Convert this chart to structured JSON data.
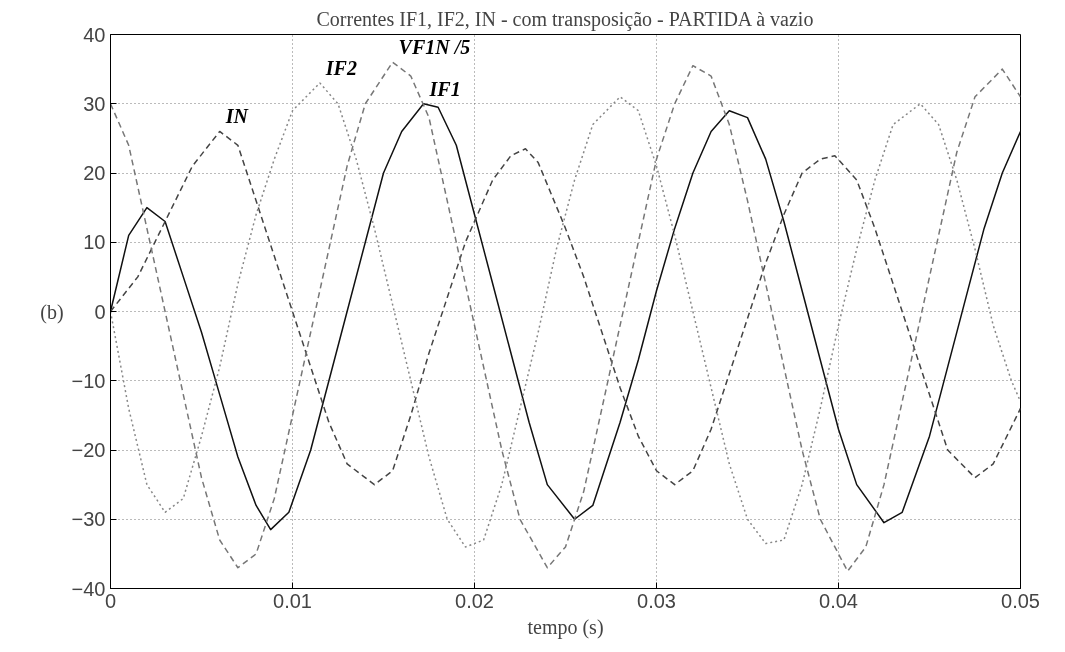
{
  "chart_data": {
    "type": "line",
    "title": "Correntes IF1, IF2, IN - com transposição - PARTIDA à vazio",
    "xlabel": "tempo (s)",
    "annotations": [
      "(b)"
    ],
    "xlim": [
      0,
      0.05
    ],
    "ylim": [
      -40,
      40
    ],
    "xticks": [
      0,
      0.01,
      0.02,
      0.03,
      0.04,
      0.05
    ],
    "yticks": [
      -40,
      -30,
      -20,
      -10,
      0,
      10,
      20,
      30,
      40
    ],
    "grid": true,
    "series": [
      {
        "name": "IF1",
        "color": "#111111",
        "line_style": "solid",
        "x": [
          0,
          0.001,
          0.002,
          0.003,
          0.004,
          0.005,
          0.006,
          0.007,
          0.008,
          0.0088,
          0.0098,
          0.011,
          0.012,
          0.013,
          0.014,
          0.015,
          0.016,
          0.0172,
          0.018,
          0.019,
          0.02,
          0.021,
          0.022,
          0.023,
          0.024,
          0.0255,
          0.0265,
          0.028,
          0.029,
          0.03,
          0.031,
          0.032,
          0.033,
          0.034,
          0.035,
          0.036,
          0.037,
          0.038,
          0.039,
          0.04,
          0.041,
          0.0425,
          0.0435,
          0.045,
          0.046,
          0.047,
          0.048,
          0.049,
          0.05
        ],
        "values": [
          0,
          11,
          15,
          13,
          5,
          -3,
          -12,
          -21,
          -28,
          -31.5,
          -29,
          -20,
          -10,
          0,
          10,
          20,
          26,
          30,
          29.5,
          24,
          14,
          4,
          -6,
          -16,
          -25,
          -30,
          -28,
          -16,
          -7,
          3,
          12,
          20,
          26,
          29,
          28,
          22,
          13,
          3,
          -7,
          -17,
          -25,
          -30.5,
          -29,
          -18,
          -8,
          2,
          12,
          20,
          26
        ]
      },
      {
        "name": "IN",
        "color": "#444444",
        "line_style": "dashed",
        "x": [
          0,
          0.0015,
          0.003,
          0.0045,
          0.006,
          0.007,
          0.008,
          0.009,
          0.01,
          0.011,
          0.012,
          0.013,
          0.0145,
          0.0155,
          0.0165,
          0.0175,
          0.0185,
          0.0195,
          0.021,
          0.022,
          0.0228,
          0.0235,
          0.025,
          0.026,
          0.027,
          0.028,
          0.029,
          0.03,
          0.031,
          0.032,
          0.033,
          0.034,
          0.035,
          0.036,
          0.037,
          0.038,
          0.039,
          0.0398,
          0.041,
          0.042,
          0.043,
          0.044,
          0.045,
          0.046,
          0.0475,
          0.0485,
          0.05
        ],
        "values": [
          0,
          5,
          13,
          21,
          26,
          24,
          16,
          8,
          0,
          -8,
          -16,
          -22,
          -25,
          -23,
          -15,
          -6,
          2,
          10,
          19,
          22.5,
          23.5,
          21.5,
          12,
          5,
          -3,
          -11,
          -18,
          -23,
          -25,
          -23,
          -17,
          -9,
          -1,
          7,
          14,
          20,
          22,
          22.5,
          19,
          12,
          4,
          -4,
          -12,
          -20,
          -24,
          -22,
          -14
        ]
      },
      {
        "name": "VF1N /5",
        "color": "#777777",
        "line_style": "dashed",
        "x": [
          0,
          0.001,
          0.002,
          0.003,
          0.004,
          0.005,
          0.006,
          0.007,
          0.008,
          0.009,
          0.01,
          0.011,
          0.012,
          0.013,
          0.014,
          0.0155,
          0.0165,
          0.0175,
          0.0185,
          0.0195,
          0.0205,
          0.0215,
          0.0225,
          0.024,
          0.025,
          0.026,
          0.027,
          0.028,
          0.029,
          0.03,
          0.031,
          0.032,
          0.033,
          0.034,
          0.035,
          0.036,
          0.037,
          0.038,
          0.039,
          0.0405,
          0.0415,
          0.0425,
          0.0435,
          0.0445,
          0.0455,
          0.0465,
          0.0475,
          0.049,
          0.05
        ],
        "values": [
          30,
          24,
          12,
          0,
          -12,
          -24,
          -33,
          -37,
          -35,
          -27,
          -15,
          -3,
          9,
          21,
          30,
          36,
          34,
          28,
          16,
          4,
          -8,
          -20,
          -30,
          -37,
          -34,
          -26,
          -14,
          -2,
          10,
          22,
          30,
          35.5,
          34,
          27,
          16,
          4,
          -8,
          -20,
          -30,
          -37.5,
          -34,
          -25,
          -13,
          -1,
          11,
          23,
          31,
          35,
          31
        ]
      },
      {
        "name": "IF2",
        "color": "#888888",
        "line_style": "dotted",
        "x": [
          0,
          0.001,
          0.002,
          0.003,
          0.004,
          0.005,
          0.006,
          0.007,
          0.008,
          0.009,
          0.01,
          0.0115,
          0.0125,
          0.0135,
          0.0145,
          0.0155,
          0.0165,
          0.0175,
          0.0185,
          0.0195,
          0.0205,
          0.0215,
          0.0225,
          0.0235,
          0.0245,
          0.0255,
          0.0265,
          0.028,
          0.029,
          0.03,
          0.031,
          0.032,
          0.033,
          0.034,
          0.035,
          0.036,
          0.037,
          0.038,
          0.039,
          0.04,
          0.041,
          0.042,
          0.043,
          0.0445,
          0.0455,
          0.0465,
          0.0475,
          0.0485,
          0.0495,
          0.05
        ],
        "values": [
          0,
          -14,
          -25,
          -29,
          -27,
          -18,
          -8,
          4,
          14,
          22,
          29,
          33,
          30,
          22,
          12,
          1,
          -10,
          -21,
          -30,
          -34,
          -33,
          -25,
          -14,
          -3,
          9,
          19,
          27,
          31,
          29,
          21,
          11,
          0,
          -11,
          -22,
          -30,
          -33.5,
          -33,
          -25,
          -14,
          -2,
          9,
          19,
          27,
          30,
          27,
          19,
          9,
          -2,
          -10,
          -13
        ]
      }
    ]
  }
}
